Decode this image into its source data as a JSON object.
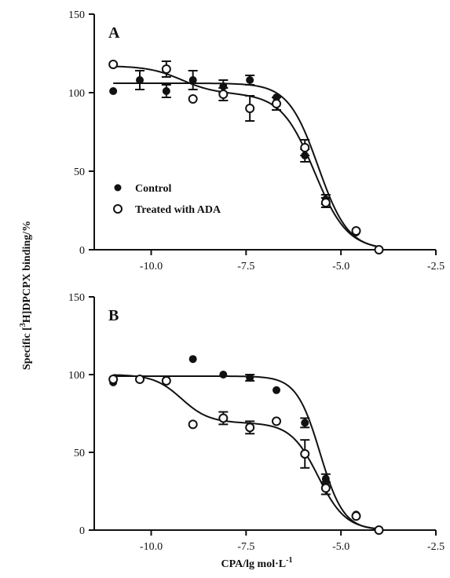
{
  "ylabel_parts": {
    "pre": "Specific [",
    "sup": "3",
    "post": "H]DPCPX binding/%"
  },
  "xlabel_parts": {
    "pre": "CPA/lg mol·L",
    "sup": "-1"
  },
  "colors": {
    "control": "#111111",
    "ada": "#111111",
    "axis": "#111111"
  },
  "chart_data": [
    {
      "type": "scatter",
      "panel": "A",
      "xlim": [
        -11.5,
        -2.5
      ],
      "ylim": [
        0,
        150
      ],
      "xticks": [
        -10.0,
        -7.5,
        -5.0,
        -2.5
      ],
      "xtick_labels": [
        "-10.0",
        "-7.5",
        "-5.0",
        "-2.5"
      ],
      "yticks": [
        0,
        50,
        100,
        150
      ],
      "ytick_labels": [
        "0",
        "50",
        "100",
        "150"
      ],
      "legend": {
        "position": "lower-left",
        "entries": [
          "Control",
          "Treated with ADA"
        ]
      },
      "series": [
        {
          "name": "Control",
          "marker": "filled-circle",
          "x": [
            -11.0,
            -10.3,
            -9.6,
            -8.9,
            -8.1,
            -7.4,
            -6.7,
            -5.95,
            -5.4,
            -4.6,
            -4.0
          ],
          "y": [
            101,
            108,
            101,
            108,
            104,
            108,
            97,
            60,
            32,
            11,
            0
          ],
          "err": [
            0,
            6,
            4,
            6,
            4,
            3,
            0,
            4,
            3,
            0,
            0
          ],
          "fit": {
            "top": 106,
            "bottom": 0,
            "logEC50": -5.6,
            "hill": 1.1
          }
        },
        {
          "name": "Treated with ADA",
          "marker": "open-circle",
          "x": [
            -11.0,
            -9.6,
            -8.9,
            -8.1,
            -7.4,
            -6.7,
            -5.95,
            -5.4,
            -4.6,
            -4.0
          ],
          "y": [
            118,
            115,
            96,
            99,
            90,
            93,
            65,
            30,
            12,
            0
          ],
          "err": [
            0,
            5,
            0,
            4,
            8,
            4,
            5,
            3,
            0,
            0
          ],
          "fit": {
            "frac1": 0.15,
            "top": 117,
            "bottom": 0,
            "logEC50_1": -9.2,
            "logEC50_2": -5.7,
            "hill": 1.0
          }
        }
      ]
    },
    {
      "type": "scatter",
      "panel": "B",
      "xlim": [
        -11.5,
        -2.5
      ],
      "ylim": [
        0,
        150
      ],
      "xticks": [
        -10.0,
        -7.5,
        -5.0,
        -2.5
      ],
      "xtick_labels": [
        "-10.0",
        "-7.5",
        "-5.0",
        "-2.5"
      ],
      "yticks": [
        0,
        50,
        100,
        150
      ],
      "ytick_labels": [
        "0",
        "50",
        "100",
        "150"
      ],
      "series": [
        {
          "name": "Control",
          "marker": "filled-circle",
          "x": [
            -11.0,
            -10.3,
            -9.6,
            -8.9,
            -8.1,
            -7.4,
            -6.7,
            -5.95,
            -5.4,
            -4.6,
            -4.0
          ],
          "y": [
            95,
            97,
            97,
            110,
            100,
            98,
            90,
            69,
            33,
            10,
            0
          ],
          "err": [
            0,
            0,
            0,
            0,
            0,
            2,
            0,
            3,
            3,
            0,
            0
          ],
          "fit": {
            "top": 99,
            "bottom": 0,
            "logEC50": -5.55,
            "hill": 1.4
          }
        },
        {
          "name": "Treated with ADA",
          "marker": "open-circle",
          "x": [
            -11.0,
            -10.3,
            -9.6,
            -8.9,
            -8.1,
            -7.4,
            -6.7,
            -5.95,
            -5.4,
            -4.6,
            -4.0
          ],
          "y": [
            97,
            97,
            96,
            68,
            72,
            66,
            70,
            49,
            27,
            9,
            0
          ],
          "err": [
            0,
            0,
            0,
            0,
            4,
            4,
            0,
            9,
            4,
            0,
            0
          ],
          "fit": {
            "frac1": 0.31,
            "top": 100,
            "bottom": 0,
            "logEC50_1": -9.2,
            "logEC50_2": -5.6,
            "hill": 1.2
          }
        }
      ]
    }
  ]
}
